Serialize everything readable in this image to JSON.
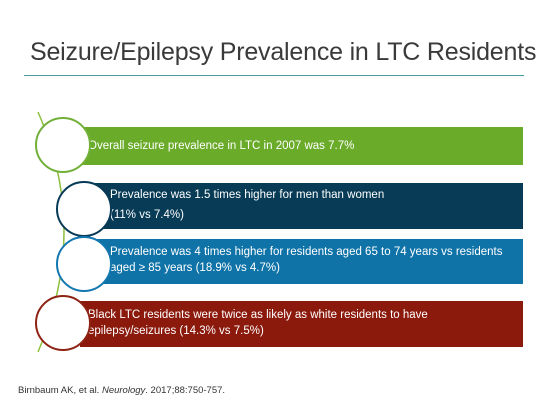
{
  "slide": {
    "title": "Seizure/Epilepsy Prevalence in LTC Residents",
    "accent_colors": {
      "green": "#6aab2a",
      "navy": "#083b56",
      "blue": "#0f73a8",
      "red": "#8b1a0d",
      "rule": "#4a9aa0"
    },
    "items": [
      {
        "line1": "Overall seizure prevalence in LTC in 2007 was 7.7%",
        "line2": ""
      },
      {
        "line1": "Prevalence was 1.5 times higher for men than women",
        "line2": "(11% vs 7.4%)"
      },
      {
        "line1": "Prevalence was 4 times higher for residents aged 65 to 74 years vs residents",
        "line2": "aged ≥ 85 years (18.9% vs 4.7%)"
      },
      {
        "line1": "Black LTC residents were twice as likely as white residents to have",
        "line2": "epilepsy/seizures (14.3% vs 7.5%)"
      }
    ],
    "citation": {
      "authors": "Birnbaum AK, et al. ",
      "journal": "Neurology",
      "rest": ". 2017;88:750-757."
    }
  }
}
